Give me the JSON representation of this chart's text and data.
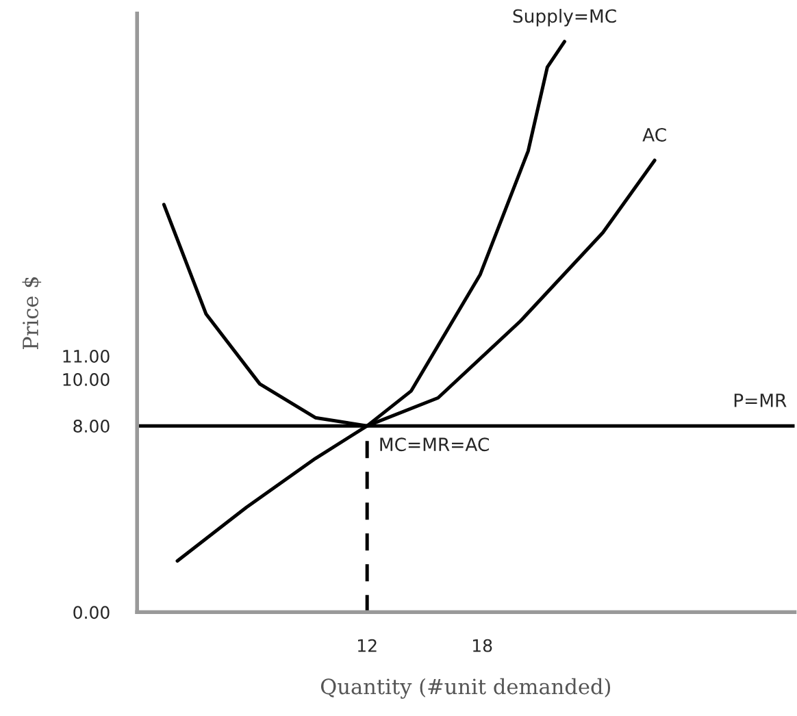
{
  "chart_data": {
    "type": "line",
    "xlabel": "Quantity (#unit demanded)",
    "ylabel": "Price $",
    "xlim": [
      0,
      34.3
    ],
    "ylim": [
      0,
      25.7
    ],
    "xticks": [
      12,
      18
    ],
    "yticks": [
      {
        "value": 0,
        "label": "0.00"
      },
      {
        "value": 8,
        "label": "8.00"
      },
      {
        "value": 10,
        "label": "10.00"
      },
      {
        "value": 11,
        "label": "11.00"
      }
    ],
    "grid": false,
    "legend": false,
    "marker": "none",
    "series": [
      {
        "name": "Supply=MC",
        "color": "#000000",
        "x": [
          2.1,
          5.7,
          9.3,
          12,
          14.3,
          17.9,
          20.4,
          21.4,
          22.3
        ],
        "values": [
          2.2,
          4.5,
          6.6,
          8,
          9.5,
          14.5,
          19.8,
          23.4,
          24.5
        ]
      },
      {
        "name": "AC",
        "color": "#000000",
        "x": [
          1.4,
          3.6,
          6.4,
          9.3,
          12,
          15.7,
          20,
          24.3,
          27
        ],
        "values": [
          17.5,
          12.8,
          9.8,
          8.35,
          8,
          9.2,
          12.5,
          16.3,
          19.4
        ]
      },
      {
        "name": "P=MR",
        "color": "#000000",
        "x": [
          0,
          34.3
        ],
        "values": [
          8,
          8
        ]
      },
      {
        "color": "#000000",
        "x": [
          12,
          12
        ],
        "values": [
          0,
          8
        ],
        "line_style": "dashed"
      }
    ],
    "annotations": [
      {
        "text": "MC=MR=AC",
        "x": 12,
        "y": 8
      }
    ]
  }
}
